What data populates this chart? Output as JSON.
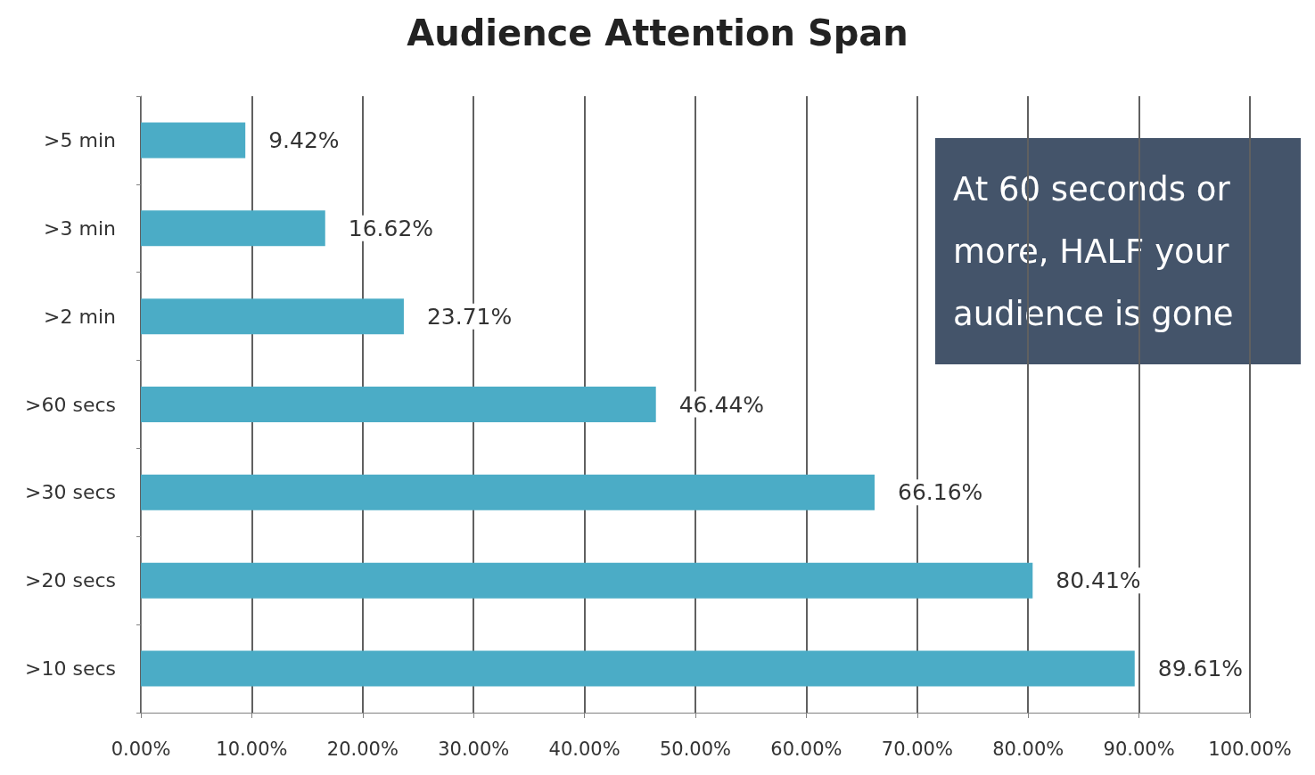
{
  "chart_data": {
    "type": "bar",
    "orientation": "horizontal",
    "title": "Audience Attention Span",
    "categories": [
      ">5 min",
      ">3 min",
      ">2 min",
      ">60 secs",
      ">30 secs",
      ">20 secs",
      ">10 secs"
    ],
    "values": [
      9.42,
      16.62,
      23.71,
      46.44,
      66.16,
      80.41,
      89.61
    ],
    "value_labels": [
      "9.42%",
      "16.62%",
      "23.71%",
      "46.44%",
      "66.16%",
      "80.41%",
      "89.61%"
    ],
    "color": "#4bacc6",
    "xlim": [
      0,
      100
    ],
    "xticks": [
      {
        "value": 0,
        "label": "0.00%"
      },
      {
        "value": 10,
        "label": "10.00%"
      },
      {
        "value": 20,
        "label": "20.00%"
      },
      {
        "value": 30,
        "label": "30.00%"
      },
      {
        "value": 40,
        "label": "40.00%"
      },
      {
        "value": 50,
        "label": "50.00%"
      },
      {
        "value": 60,
        "label": "60.00%"
      },
      {
        "value": 70,
        "label": "70.00%"
      },
      {
        "value": 80,
        "label": "80.00%"
      },
      {
        "value": 90,
        "label": "90.00%"
      },
      {
        "value": 100,
        "label": "100.00%"
      }
    ],
    "grid": "x",
    "annotations": [
      "At 60 seconds or more, HALF your audience is gone"
    ]
  }
}
